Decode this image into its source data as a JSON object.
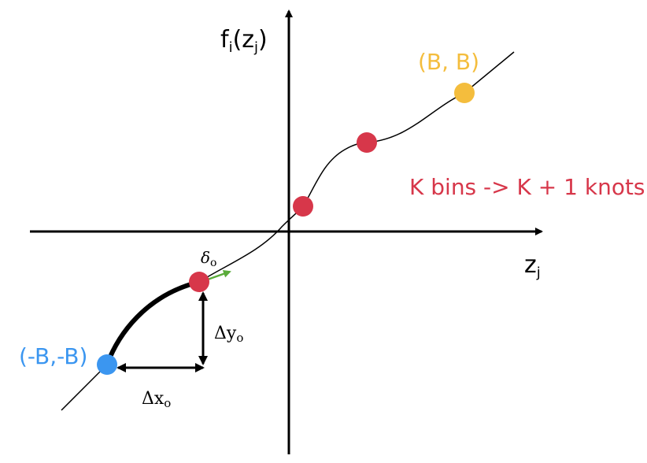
{
  "labels": {
    "y_axis_main": "f",
    "y_axis_sub_i": "i",
    "y_axis_paren_open": "(z",
    "y_axis_sub_j": "j",
    "y_axis_paren_close": ")",
    "x_axis_main": "z",
    "x_axis_sub": "j",
    "top_knot": "(B, B)",
    "bottom_knot": "(-B,-B)",
    "bins_note": "K bins -> K + 1 knots",
    "delta_main": "δ",
    "delta_sub": "o",
    "dy_main": "Δy",
    "dy_sub": "o",
    "dx_main": "Δx",
    "dx_sub": "o"
  },
  "colors": {
    "axis": "#000000",
    "curve": "#000000",
    "knot_red": "#d7374a",
    "knot_blue": "#3b96f0",
    "knot_yellow": "#f4bd3d",
    "derivative_arrow": "#5aab3a",
    "label_red": "#d7374a",
    "label_blue": "#3b96f0",
    "label_yellow": "#f4bd3d"
  }
}
